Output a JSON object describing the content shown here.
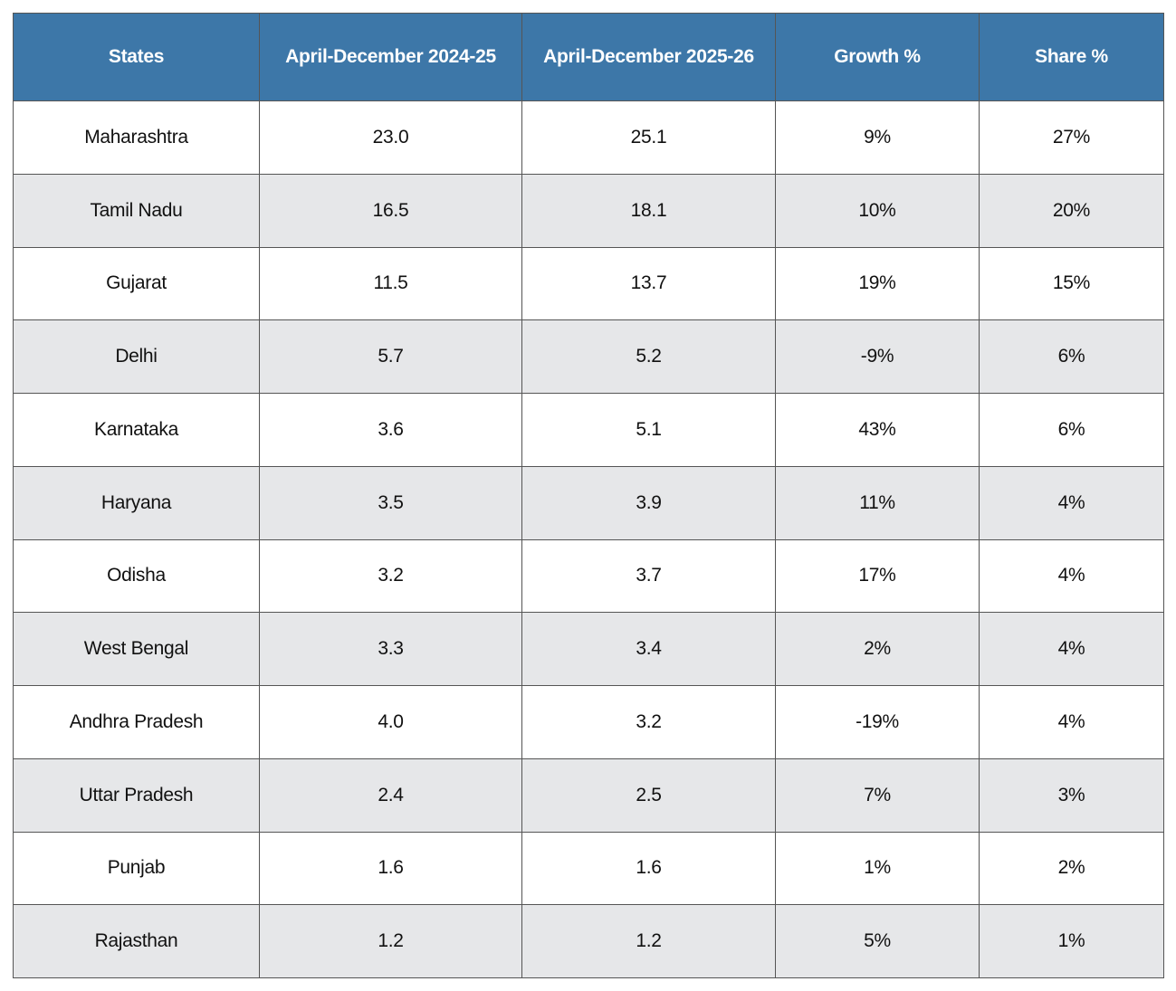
{
  "table": {
    "header": [
      "States",
      "April-December 2024-25",
      "April-December 2025-26",
      "Growth %",
      "Share %"
    ],
    "rows": [
      [
        "Maharashtra",
        "23.0",
        "25.1",
        "9%",
        "27%"
      ],
      [
        "Tamil Nadu",
        "16.5",
        "18.1",
        "10%",
        "20%"
      ],
      [
        "Gujarat",
        "11.5",
        "13.7",
        "19%",
        "15%"
      ],
      [
        "Delhi",
        "5.7",
        "5.2",
        "-9%",
        "6%"
      ],
      [
        "Karnataka",
        "3.6",
        "5.1",
        "43%",
        "6%"
      ],
      [
        "Haryana",
        "3.5",
        "3.9",
        "11%",
        "4%"
      ],
      [
        "Odisha",
        "3.2",
        "3.7",
        "17%",
        "4%"
      ],
      [
        "West Bengal",
        "3.3",
        "3.4",
        "2%",
        "4%"
      ],
      [
        "Andhra Pradesh",
        "4.0",
        "3.2",
        "-19%",
        "4%"
      ],
      [
        "Uttar Pradesh",
        "2.4",
        "2.5",
        "7%",
        "3%"
      ],
      [
        "Punjab",
        "1.6",
        "1.6",
        "1%",
        "2%"
      ],
      [
        "Rajasthan",
        "1.2",
        "1.2",
        "5%",
        "1%"
      ]
    ]
  }
}
